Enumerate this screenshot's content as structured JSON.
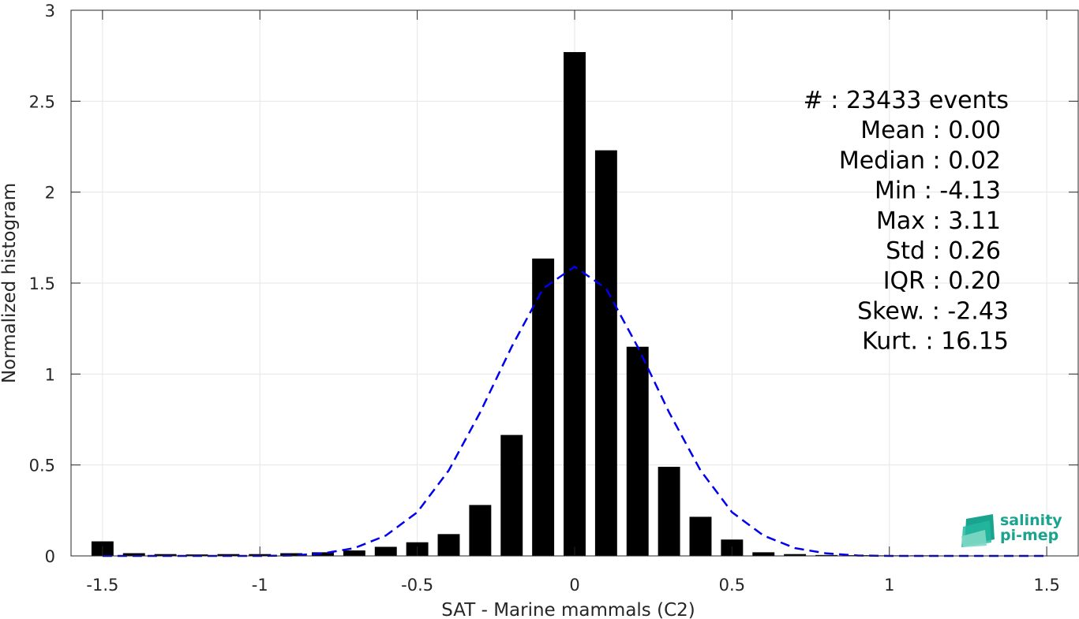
{
  "chart_data": {
    "type": "bar",
    "title": "",
    "xlabel": "SAT - Marine mammals (C2)",
    "ylabel": "Normalized histogram",
    "xlim": [
      -1.6,
      1.6
    ],
    "ylim": [
      0,
      3
    ],
    "grid": true,
    "bar_color": "#000000",
    "fit_color": "#0000ee",
    "x_ticks": [
      {
        "value": -1.5,
        "label": "-1.5"
      },
      {
        "value": -1,
        "label": "-1"
      },
      {
        "value": -0.5,
        "label": "-0.5"
      },
      {
        "value": 0,
        "label": "0"
      },
      {
        "value": 0.5,
        "label": "0.5"
      },
      {
        "value": 1,
        "label": "1"
      },
      {
        "value": 1.5,
        "label": "1.5"
      }
    ],
    "y_ticks": [
      {
        "value": 0,
        "label": "0"
      },
      {
        "value": 0.5,
        "label": "0.5"
      },
      {
        "value": 1,
        "label": "1"
      },
      {
        "value": 1.5,
        "label": "1.5"
      },
      {
        "value": 2,
        "label": "2"
      },
      {
        "value": 2.5,
        "label": "2.5"
      },
      {
        "value": 3,
        "label": "3"
      }
    ],
    "bar_width": 0.07,
    "bars": {
      "x": [
        -1.5,
        -1.4,
        -1.3,
        -1.2,
        -1.1,
        -1.0,
        -0.9,
        -0.8,
        -0.7,
        -0.6,
        -0.5,
        -0.4,
        -0.3,
        -0.2,
        -0.1,
        0.0,
        0.1,
        0.2,
        0.3,
        0.4,
        0.5,
        0.6,
        0.7,
        0.8,
        0.9,
        1.0,
        1.1,
        1.2,
        1.3,
        1.4,
        1.5
      ],
      "values": [
        0.08,
        0.015,
        0.01,
        0.008,
        0.01,
        0.01,
        0.015,
        0.02,
        0.03,
        0.05,
        0.075,
        0.12,
        0.28,
        0.665,
        1.635,
        2.77,
        2.23,
        1.15,
        0.49,
        0.215,
        0.09,
        0.02,
        0.01,
        0.005,
        0.004,
        0.003,
        0.003,
        0.002,
        0.002,
        0.002,
        0.002
      ]
    },
    "gaussian_fit": {
      "mean": 0.0,
      "std": 0.26,
      "x": [
        -1.5,
        -1.4,
        -1.3,
        -1.2,
        -1.1,
        -1.0,
        -0.9,
        -0.8,
        -0.7,
        -0.6,
        -0.5,
        -0.4,
        -0.3,
        -0.2,
        -0.1,
        0.0,
        0.1,
        0.2,
        0.3,
        0.4,
        0.5,
        0.6,
        0.7,
        0.8,
        0.9,
        1.0,
        1.1,
        1.2,
        1.3,
        1.4,
        1.5
      ],
      "values": [
        0.0,
        0.0,
        0.0,
        0.0,
        0.0,
        0.0,
        0.002,
        0.014,
        0.043,
        0.112,
        0.24,
        0.47,
        0.79,
        1.15,
        1.47,
        1.59,
        1.47,
        1.15,
        0.79,
        0.47,
        0.24,
        0.112,
        0.043,
        0.014,
        0.002,
        0.0,
        0.0,
        0.0,
        0.0,
        0.0,
        0.0
      ]
    },
    "annotations": [
      {
        "name": "count",
        "text": "#  : 23433 events"
      },
      {
        "name": "mean",
        "text": "Mean : 0.00"
      },
      {
        "name": "median",
        "text": "Median : 0.02"
      },
      {
        "name": "min",
        "text": "Min : -4.13"
      },
      {
        "name": "max",
        "text": "Max : 3.11"
      },
      {
        "name": "std",
        "text": "Std : 0.26"
      },
      {
        "name": "iqr",
        "text": "IQR : 0.20"
      },
      {
        "name": "skew",
        "text": "Skew. : -2.43"
      },
      {
        "name": "kurt",
        "text": "Kurt. : 16.15"
      }
    ]
  },
  "logo": {
    "line1": "salinity",
    "line2": "pi-mep",
    "colors": [
      "#1aa38e",
      "#26b89f",
      "#7fd8c4"
    ]
  }
}
